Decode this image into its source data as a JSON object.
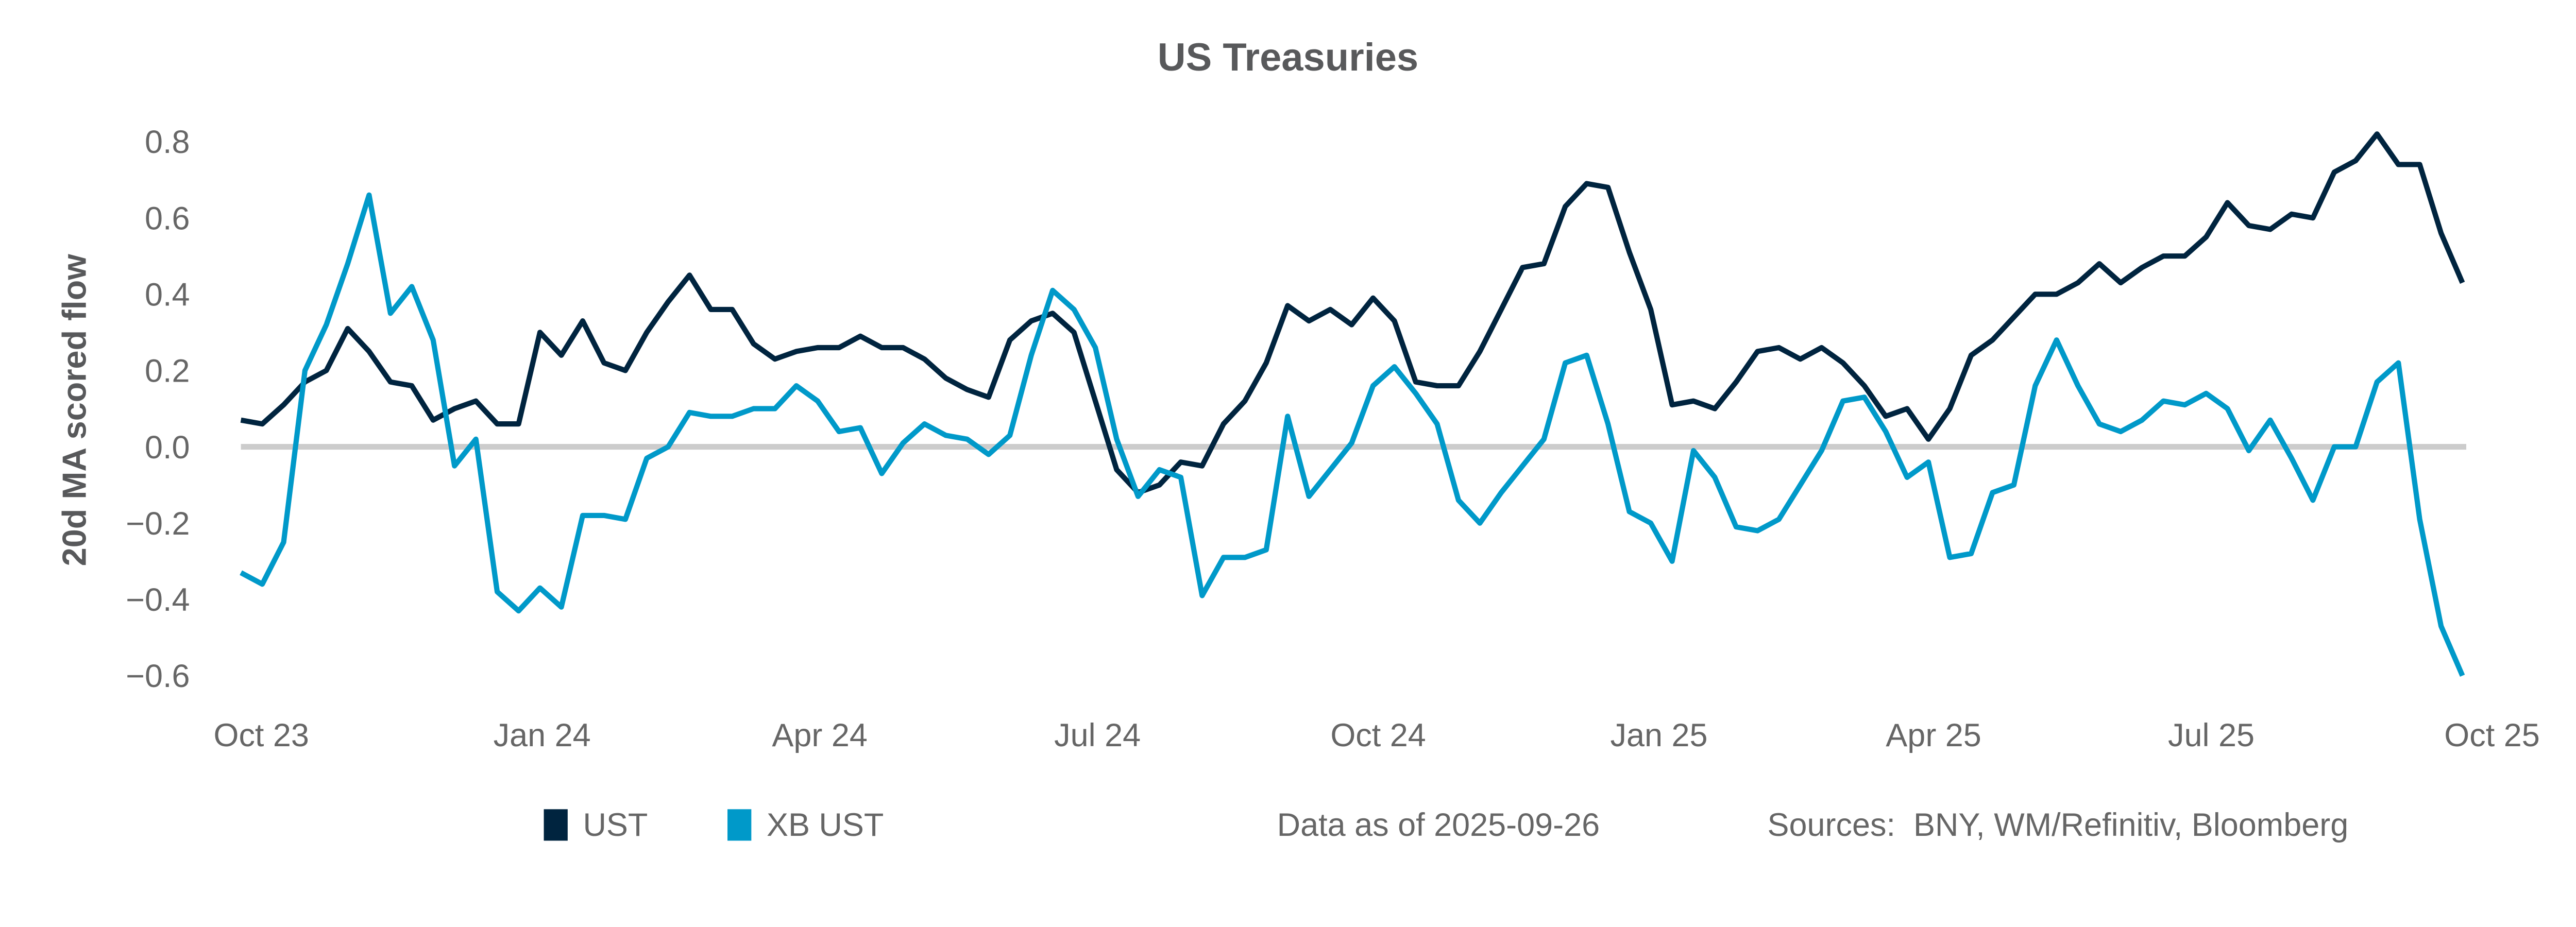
{
  "chart_data": {
    "type": "line",
    "title": "US Treasuries",
    "ylabel": "20d MA scored flow",
    "xlabel": "",
    "ylim": [
      -0.65,
      0.85
    ],
    "yticks": [
      0.8,
      0.6,
      0.4,
      0.2,
      0.0,
      -0.2,
      -0.4,
      -0.6
    ],
    "ytick_labels": [
      "0.8",
      "0.6",
      "0.4",
      "0.2",
      "0.0",
      "−0.2",
      "−0.4",
      "−0.6"
    ],
    "xticks": [
      {
        "label": "Oct 23",
        "date": "2023-10-01"
      },
      {
        "label": "Jan 24",
        "date": "2024-01-01"
      },
      {
        "label": "Apr 24",
        "date": "2024-04-01"
      },
      {
        "label": "Jul 24",
        "date": "2024-07-01"
      },
      {
        "label": "Oct 24",
        "date": "2024-10-01"
      },
      {
        "label": "Jan 25",
        "date": "2025-01-01"
      },
      {
        "label": "Apr 25",
        "date": "2025-04-01"
      },
      {
        "label": "Jul 25",
        "date": "2025-07-01"
      },
      {
        "label": "Oct 25",
        "date": "2025-10-01"
      }
    ],
    "zero_line": true,
    "grid": false,
    "legend_position": "bottom-left",
    "x": [
      "2023-09-29",
      "2023-10-06",
      "2023-10-13",
      "2023-10-20",
      "2023-10-27",
      "2023-11-03",
      "2023-11-10",
      "2023-11-17",
      "2023-11-24",
      "2023-12-01",
      "2023-12-08",
      "2023-12-15",
      "2023-12-22",
      "2023-12-29",
      "2024-01-05",
      "2024-01-12",
      "2024-01-19",
      "2024-01-26",
      "2024-02-02",
      "2024-02-09",
      "2024-02-16",
      "2024-02-23",
      "2024-03-01",
      "2024-03-08",
      "2024-03-15",
      "2024-03-22",
      "2024-03-29",
      "2024-04-05",
      "2024-04-12",
      "2024-04-19",
      "2024-04-26",
      "2024-05-03",
      "2024-05-10",
      "2024-05-17",
      "2024-05-24",
      "2024-05-31",
      "2024-06-07",
      "2024-06-14",
      "2024-06-21",
      "2024-06-28",
      "2024-07-05",
      "2024-07-12",
      "2024-07-19",
      "2024-07-26",
      "2024-08-02",
      "2024-08-09",
      "2024-08-16",
      "2024-08-23",
      "2024-08-30",
      "2024-09-06",
      "2024-09-13",
      "2024-09-20",
      "2024-09-27",
      "2024-10-04",
      "2024-10-11",
      "2024-10-18",
      "2024-10-25",
      "2024-11-01",
      "2024-11-08",
      "2024-11-15",
      "2024-11-22",
      "2024-11-29",
      "2024-12-06",
      "2024-12-13",
      "2024-12-20",
      "2024-12-27",
      "2025-01-03",
      "2025-01-10",
      "2025-01-17",
      "2025-01-24",
      "2025-01-31",
      "2025-02-07",
      "2025-02-14",
      "2025-02-21",
      "2025-02-28",
      "2025-03-07",
      "2025-03-14",
      "2025-03-21",
      "2025-03-28",
      "2025-04-04",
      "2025-04-11",
      "2025-04-18",
      "2025-04-25",
      "2025-05-02",
      "2025-05-09",
      "2025-05-16",
      "2025-05-23",
      "2025-05-30",
      "2025-06-06",
      "2025-06-13",
      "2025-06-20",
      "2025-06-27",
      "2025-07-04",
      "2025-07-11",
      "2025-07-18",
      "2025-07-25",
      "2025-08-01",
      "2025-08-08",
      "2025-08-15",
      "2025-08-22",
      "2025-08-29",
      "2025-09-05",
      "2025-09-12",
      "2025-09-19",
      "2025-09-26"
    ],
    "series": [
      {
        "name": "UST",
        "color": "#00243f",
        "values": [
          0.07,
          0.06,
          0.11,
          0.17,
          0.2,
          0.31,
          0.25,
          0.17,
          0.16,
          0.07,
          0.1,
          0.12,
          0.06,
          0.06,
          0.3,
          0.24,
          0.33,
          0.22,
          0.2,
          0.3,
          0.38,
          0.45,
          0.36,
          0.36,
          0.27,
          0.23,
          0.25,
          0.26,
          0.26,
          0.29,
          0.26,
          0.26,
          0.23,
          0.18,
          0.15,
          0.13,
          0.28,
          0.33,
          0.35,
          0.3,
          0.12,
          -0.06,
          -0.12,
          -0.1,
          -0.04,
          -0.05,
          0.06,
          0.12,
          0.22,
          0.37,
          0.33,
          0.36,
          0.32,
          0.39,
          0.33,
          0.17,
          0.16,
          0.16,
          0.25,
          0.36,
          0.47,
          0.48,
          0.63,
          0.69,
          0.68,
          0.51,
          0.36,
          0.11,
          0.12,
          0.1,
          0.17,
          0.25,
          0.26,
          0.23,
          0.26,
          0.22,
          0.16,
          0.08,
          0.1,
          0.02,
          0.1,
          0.24,
          0.28,
          0.34,
          0.4,
          0.4,
          0.43,
          0.48,
          0.43,
          0.47,
          0.5,
          0.5,
          0.55,
          0.64,
          0.58,
          0.57,
          0.61,
          0.6,
          0.72,
          0.75,
          0.82,
          0.74,
          0.74,
          0.56,
          0.43
        ]
      },
      {
        "name": "XB UST",
        "color": "#0099c9",
        "values": [
          -0.33,
          -0.36,
          -0.25,
          0.2,
          0.32,
          0.48,
          0.66,
          0.35,
          0.42,
          0.28,
          -0.05,
          0.02,
          -0.38,
          -0.43,
          -0.37,
          -0.42,
          -0.18,
          -0.18,
          -0.19,
          -0.03,
          0.0,
          0.09,
          0.08,
          0.08,
          0.1,
          0.1,
          0.16,
          0.12,
          0.04,
          0.05,
          -0.07,
          0.01,
          0.06,
          0.03,
          0.02,
          -0.02,
          0.03,
          0.24,
          0.41,
          0.36,
          0.26,
          0.02,
          -0.13,
          -0.06,
          -0.08,
          -0.39,
          -0.29,
          -0.29,
          -0.27,
          0.08,
          -0.13,
          -0.06,
          0.01,
          0.16,
          0.21,
          0.14,
          0.06,
          -0.14,
          -0.2,
          -0.12,
          -0.05,
          0.02,
          0.22,
          0.24,
          0.06,
          -0.17,
          -0.2,
          -0.3,
          -0.01,
          -0.08,
          -0.21,
          -0.22,
          -0.19,
          -0.1,
          -0.01,
          0.12,
          0.13,
          0.04,
          -0.08,
          -0.04,
          -0.29,
          -0.28,
          -0.12,
          -0.1,
          0.16,
          0.28,
          0.16,
          0.06,
          0.04,
          0.07,
          0.12,
          0.11,
          0.14,
          0.1,
          -0.01,
          0.07,
          -0.03,
          -0.14,
          0.0,
          0.0,
          0.17,
          0.22,
          -0.19,
          -0.47,
          -0.6
        ]
      }
    ],
    "zero_line_color": "#cccccc"
  },
  "footer": {
    "legend": [
      {
        "label": "UST",
        "color": "#00243f"
      },
      {
        "label": "XB UST",
        "color": "#0099c9"
      }
    ],
    "data_as_of": "Data as of 2025-09-26",
    "sources": "Sources:  BNY, WM/Refinitiv, Bloomberg"
  }
}
